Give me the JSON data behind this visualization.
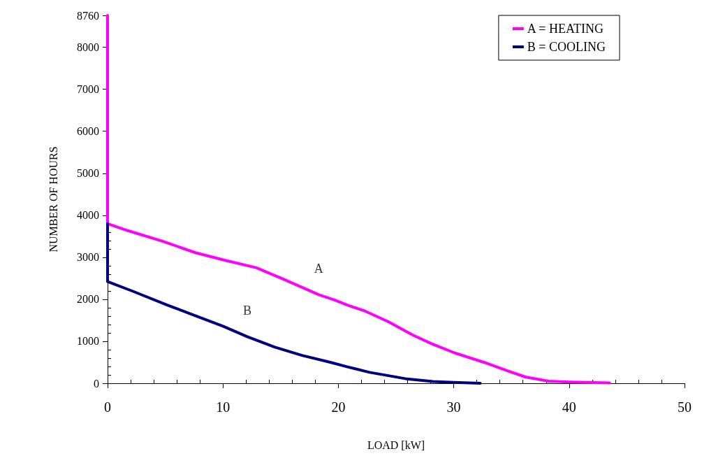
{
  "chart_data": {
    "type": "line",
    "xlabel": "LOAD [kW]",
    "ylabel": "NUMBER OF HOURS",
    "xlim": [
      0,
      50
    ],
    "ylim": [
      0,
      8760
    ],
    "xticks": [
      0,
      10,
      20,
      30,
      40,
      50,
      {
        "value": 2,
        "label": null
      },
      {
        "value": 4,
        "label": null
      },
      {
        "value": 6,
        "label": null
      },
      {
        "value": 8,
        "label": null
      },
      {
        "value": 12,
        "label": null
      },
      {
        "value": 14,
        "label": null
      },
      {
        "value": 16,
        "label": null
      },
      {
        "value": 18,
        "label": null
      },
      {
        "value": 22,
        "label": null
      },
      {
        "value": 24,
        "label": null
      },
      {
        "value": 26,
        "label": null
      },
      {
        "value": 28,
        "label": null
      },
      {
        "value": 32,
        "label": null
      },
      {
        "value": 34,
        "label": null
      },
      {
        "value": 36,
        "label": null
      },
      {
        "value": 38,
        "label": null
      },
      {
        "value": 42,
        "label": null
      },
      {
        "value": 44,
        "label": null
      },
      {
        "value": 46,
        "label": null
      },
      {
        "value": 48,
        "label": null
      }
    ],
    "yticks": [
      0,
      1000,
      2000,
      3000,
      4000,
      5000,
      6000,
      7000,
      8000,
      8760,
      {
        "value": 200,
        "label": null
      },
      {
        "value": 400,
        "label": null
      },
      {
        "value": 600,
        "label": null
      },
      {
        "value": 800,
        "label": null
      },
      {
        "value": 1200,
        "label": null
      },
      {
        "value": 1400,
        "label": null
      },
      {
        "value": 1600,
        "label": null
      },
      {
        "value": 1800,
        "label": null
      },
      {
        "value": 2200,
        "label": null
      },
      {
        "value": 2400,
        "label": null
      },
      {
        "value": 2600,
        "label": null
      },
      {
        "value": 2800,
        "label": null
      },
      {
        "value": 3200,
        "label": null
      },
      {
        "value": 3400,
        "label": null
      },
      {
        "value": 3600,
        "label": null
      },
      {
        "value": 3800,
        "label": null
      }
    ],
    "grid": false,
    "legend": "top right",
    "marker": "none",
    "line_style": "solid",
    "annotations": [
      {
        "text": "A",
        "x": 18.3,
        "y": 2110
      },
      {
        "text": "B",
        "x": 12.1,
        "y": 1110
      }
    ],
    "series": [
      {
        "name": "A = HEATING",
        "color": "#ff00ff",
        "x": [
          0,
          0,
          1.8,
          4.8,
          7.6,
          10.0,
          12.9,
          15.3,
          18.3,
          19.7,
          20.8,
          22.3,
          24.3,
          26.5,
          28.1,
          30.1,
          32.6,
          34.6,
          36.2,
          38.2,
          40.0,
          43.5
        ],
        "values": [
          8760,
          3800,
          3630,
          3380,
          3110,
          2940,
          2750,
          2470,
          2110,
          1980,
          1860,
          1720,
          1470,
          1140,
          940,
          720,
          500,
          300,
          150,
          50,
          30,
          10
        ]
      },
      {
        "name": "B = COOLING",
        "color": "#000080",
        "x": [
          0,
          0,
          2.2,
          5.2,
          7.6,
          10.0,
          12.1,
          14.5,
          16.9,
          19.3,
          20.8,
          22.7,
          25.8,
          28.2,
          30.0,
          32.3
        ],
        "values": [
          3800,
          2420,
          2190,
          1860,
          1610,
          1360,
          1110,
          860,
          660,
          500,
          390,
          260,
          110,
          40,
          20,
          0
        ]
      }
    ]
  }
}
